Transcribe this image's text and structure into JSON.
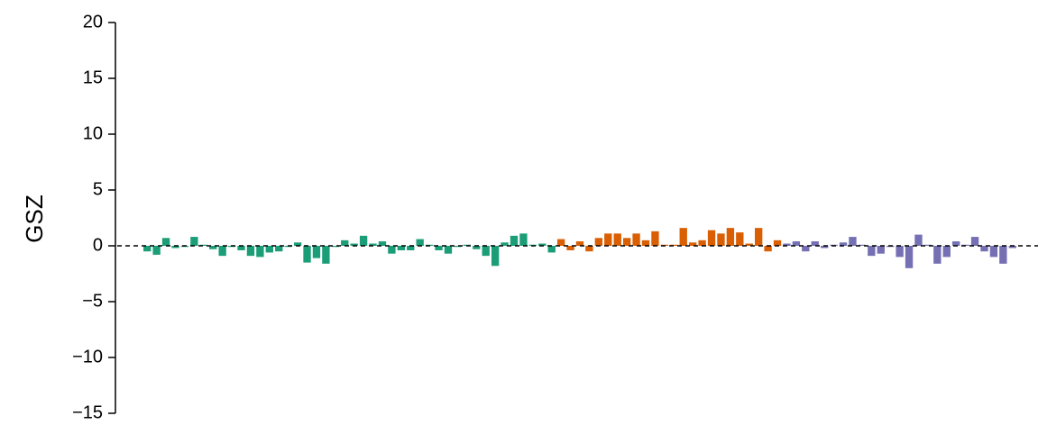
{
  "chart_data": {
    "type": "bar",
    "y_label": "GSZ",
    "ylim": [
      -15,
      20
    ],
    "yticks": [
      {
        "value": -15,
        "label": "−15"
      },
      {
        "value": -10,
        "label": "−10"
      },
      {
        "value": -5,
        "label": "−5"
      },
      0,
      5,
      10,
      15,
      20
    ],
    "reference_line": 0,
    "categories": [
      null,
      null,
      null,
      null,
      null,
      null,
      null,
      null,
      null,
      null,
      null,
      null,
      null,
      null,
      null,
      null,
      null,
      null,
      null,
      null,
      null,
      null,
      null,
      null,
      null,
      null,
      null,
      null,
      null,
      null,
      null,
      null,
      null,
      null,
      null,
      null,
      null,
      null,
      null,
      null,
      null,
      null,
      null,
      null,
      null,
      null,
      null,
      null,
      null,
      null,
      null,
      null,
      null,
      null,
      null,
      null,
      null,
      null,
      null,
      null,
      null,
      null,
      null,
      null,
      null,
      null,
      null,
      null,
      null,
      null,
      null,
      null,
      null,
      null,
      null,
      null,
      null,
      null,
      null,
      null,
      null,
      null,
      null,
      null,
      null,
      null,
      null,
      null,
      null,
      null,
      null,
      null,
      null
    ],
    "series": [
      {
        "color": "#1b9e77",
        "values": [
          -0.5,
          -0.8,
          0.7,
          -0.2,
          -0.1,
          0.8,
          0.1,
          -0.3,
          -0.9,
          -0.1,
          -0.4,
          -0.9,
          -1.0,
          -0.6,
          -0.5,
          -0.1,
          0.3,
          -1.5,
          -1.1,
          -1.6,
          -0.1,
          0.5,
          0.2,
          0.9,
          0.2,
          0.4,
          -0.7,
          -0.4,
          -0.4,
          0.6,
          0.1,
          -0.4,
          -0.7,
          -0.1,
          0.1,
          -0.3,
          -0.9,
          -1.8,
          0.3,
          0.9,
          1.1,
          0.1,
          0.2,
          -0.6,
          null,
          null,
          null,
          null,
          null,
          null,
          null,
          null,
          null,
          null,
          null,
          null,
          null,
          null,
          null,
          null,
          null,
          null,
          null,
          null,
          null,
          null,
          null,
          null,
          null,
          null,
          null,
          null,
          null,
          null,
          null,
          null,
          null,
          null,
          null,
          null,
          null,
          null,
          null,
          null,
          null,
          null,
          null,
          null,
          null,
          null,
          null,
          null,
          null
        ]
      },
      {
        "color": "#d95f02",
        "values": [
          null,
          null,
          null,
          null,
          null,
          null,
          null,
          null,
          null,
          null,
          null,
          null,
          null,
          null,
          null,
          null,
          null,
          null,
          null,
          null,
          null,
          null,
          null,
          null,
          null,
          null,
          null,
          null,
          null,
          null,
          null,
          null,
          null,
          null,
          null,
          null,
          null,
          null,
          null,
          null,
          null,
          null,
          null,
          null,
          0.6,
          -0.4,
          0.4,
          -0.5,
          0.7,
          1.1,
          1.1,
          0.7,
          1.1,
          0.5,
          1.3,
          0.1,
          0.1,
          1.6,
          0.3,
          0.5,
          1.4,
          1.1,
          1.6,
          1.2,
          0.2,
          1.6,
          -0.5,
          0.5,
          null,
          null,
          null,
          null,
          null,
          null,
          null,
          null,
          null,
          null,
          null,
          null,
          null,
          null,
          null,
          null,
          null,
          null,
          null,
          null,
          null,
          null,
          null,
          null,
          null
        ]
      },
      {
        "color": "#7570b3",
        "values": [
          null,
          null,
          null,
          null,
          null,
          null,
          null,
          null,
          null,
          null,
          null,
          null,
          null,
          null,
          null,
          null,
          null,
          null,
          null,
          null,
          null,
          null,
          null,
          null,
          null,
          null,
          null,
          null,
          null,
          null,
          null,
          null,
          null,
          null,
          null,
          null,
          null,
          null,
          null,
          null,
          null,
          null,
          null,
          null,
          null,
          null,
          null,
          null,
          null,
          null,
          null,
          null,
          null,
          null,
          null,
          null,
          null,
          null,
          null,
          null,
          null,
          null,
          null,
          null,
          null,
          null,
          null,
          null,
          0.2,
          0.4,
          -0.5,
          0.4,
          -0.2,
          0.1,
          0.3,
          0.8,
          0.1,
          -0.9,
          -0.7,
          -0.1,
          -1.0,
          -2.0,
          1.0,
          0.1,
          -1.6,
          -1.0,
          0.4,
          0.1,
          0.8,
          -0.5,
          -1.0,
          -1.6,
          -0.2
        ]
      }
    ]
  }
}
